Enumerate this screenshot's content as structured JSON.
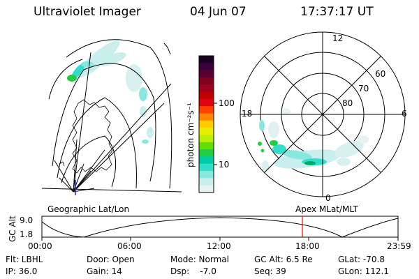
{
  "header": {
    "title": "Ultraviolet Imager",
    "date": "04 Jun 07",
    "time": "17:37:17 UT"
  },
  "colorbar": {
    "unit_label": "photon cm⁻²s⁻¹",
    "ticks": [
      "100",
      "10"
    ],
    "colors": [
      "#1a0020",
      "#3a0040",
      "#5a0030",
      "#800020",
      "#a00020",
      "#c00000",
      "#e00010",
      "#ff4000",
      "#ff8800",
      "#ffcc00",
      "#e8ee00",
      "#bbee00",
      "#66dd00",
      "#22cc44",
      "#00ccaa",
      "#33ddcc",
      "#88e8e0",
      "#c8eeee",
      "#e6f2f2"
    ]
  },
  "left_map": {
    "label": "Geographic Lat/Lon"
  },
  "polar_map": {
    "label": "Apex MLat/MLT",
    "mlt_labels": [
      "12",
      "18",
      "6",
      "0"
    ],
    "lat_labels": [
      "60",
      "70",
      "80"
    ]
  },
  "timeline": {
    "axis_label": "GC Alt",
    "y_ticks": [
      "9.0",
      "1.8"
    ],
    "x_ticks": [
      "00:00",
      "06:00",
      "12:00",
      "18:00",
      "23:59"
    ],
    "current_marker_color": "#ff0000"
  },
  "info": {
    "row1": {
      "flt": "Flt: LBHL",
      "door": "Door: Open",
      "mode": "Mode: Normal",
      "gc_alt": "GC Alt: 6.5 Re",
      "glat": "GLat: -70.8"
    },
    "row2": {
      "ip": "IP: 36.0",
      "gain": "Gain: 14",
      "dsp": "Dsp:    -7.0",
      "seq": "Seq: 39",
      "glon": "GLon: 112.1"
    }
  }
}
